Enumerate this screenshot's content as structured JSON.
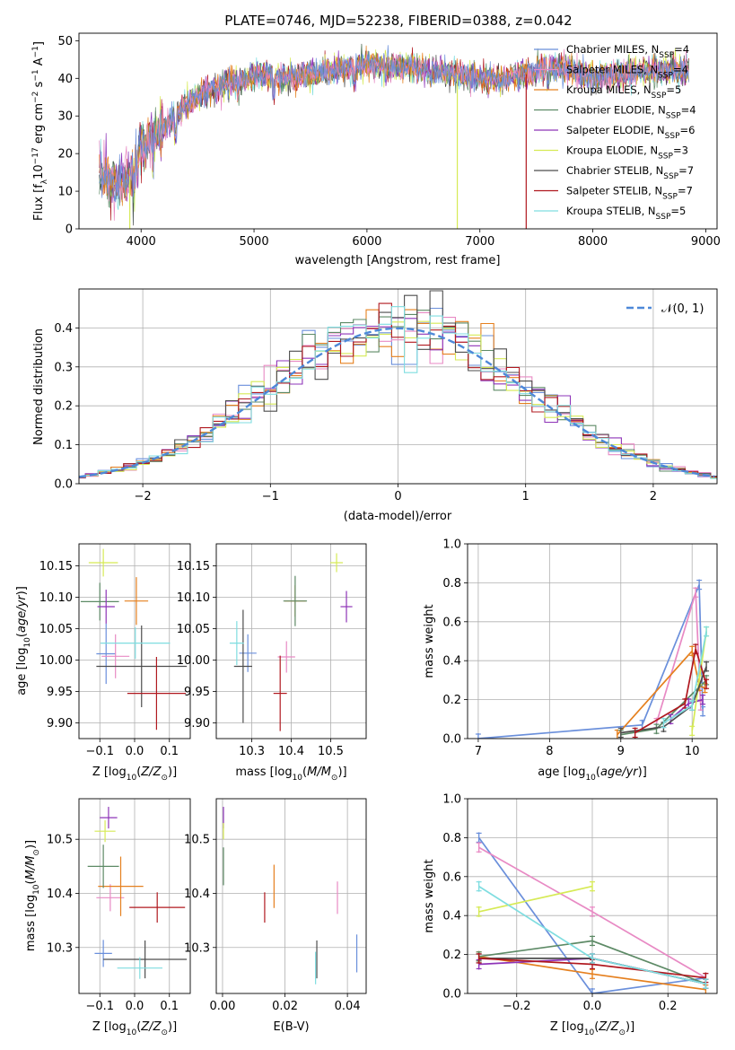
{
  "title": "PLATE=0746, MJD=52238, FIBERID=0388, z=0.042",
  "colors": {
    "Chabrier MILES": "#6a8fdb",
    "Salpeter MILES": "#e88ac4",
    "Kroupa MILES": "#e5801f",
    "Chabrier ELODIE": "#5d8a66",
    "Salpeter ELODIE": "#8e34b8",
    "Kroupa ELODIE": "#d6ea55",
    "Chabrier STELIB": "#4d4d4d",
    "Salpeter STELIB": "#b0181f",
    "Kroupa STELIB": "#7fdde0",
    "normal": "#4d88d8"
  },
  "legend_spectrum": [
    {
      "model": "Chabrier MILES",
      "n": "4"
    },
    {
      "model": "Salpeter MILES",
      "n": "4"
    },
    {
      "model": "Kroupa MILES",
      "n": "5"
    },
    {
      "model": "Chabrier ELODIE",
      "n": "4"
    },
    {
      "model": "Salpeter ELODIE",
      "n": "6"
    },
    {
      "model": "Kroupa ELODIE",
      "n": "3"
    },
    {
      "model": "Chabrier STELIB",
      "n": "7"
    },
    {
      "model": "Salpeter STELIB",
      "n": "7"
    },
    {
      "model": "Kroupa STELIB",
      "n": "5"
    }
  ],
  "legend_hist": "𝒩(0, 1)",
  "chart_data": [
    {
      "id": "spectrum",
      "type": "line",
      "xlabel": "wavelength [Angstrom, rest frame]",
      "ylabel": "Flux [f_λ 10^-17 erg cm^-2 s^-1 A^-1]",
      "xlim": [
        3450,
        9100
      ],
      "ylim": [
        0,
        52
      ],
      "xticks": [
        4000,
        5000,
        6000,
        7000,
        8000,
        9000
      ],
      "yticks": [
        0,
        10,
        20,
        30,
        40,
        50
      ],
      "continuum": {
        "x": [
          3630,
          3700,
          3800,
          3900,
          3980,
          4100,
          4200,
          4300,
          4400,
          4500,
          4700,
          4900,
          5100,
          5300,
          5500,
          5700,
          5900,
          6000,
          6200,
          6400,
          6600,
          6800,
          7000,
          7200,
          7400,
          7600,
          7800,
          8000,
          8200,
          8500,
          8800,
          8850
        ],
        "y": [
          15,
          14,
          12,
          14,
          22,
          24,
          27,
          30,
          33,
          35,
          38,
          40,
          41,
          40,
          41,
          42,
          43,
          44,
          43,
          43,
          42,
          41,
          40,
          40,
          41,
          43,
          42,
          40,
          41,
          42,
          42,
          43
        ]
      },
      "spikes": [
        {
          "model": "Kroupa ELODIE",
          "x": 3900
        },
        {
          "model": "Kroupa ELODIE",
          "x": 6800
        },
        {
          "model": "Salpeter STELIB",
          "x": 7410
        }
      ],
      "grid": false
    },
    {
      "id": "residual_hist",
      "type": "histogram",
      "xlabel": "(data-model)/error",
      "ylabel": "Normed distribution",
      "xlim": [
        -2.5,
        2.5
      ],
      "ylim": [
        0,
        0.5
      ],
      "xticks": [
        -2,
        -1,
        0,
        1,
        2
      ],
      "yticks": [
        0.0,
        0.1,
        0.2,
        0.3,
        0.4
      ],
      "bin_width": 0.1,
      "series_models": [
        "Chabrier MILES",
        "Salpeter MILES",
        "Kroupa MILES",
        "Chabrier ELODIE",
        "Salpeter ELODIE",
        "Kroupa ELODIE",
        "Chabrier STELIB",
        "Salpeter STELIB",
        "Kroupa STELIB"
      ],
      "reference": "standard normal pdf",
      "grid": true,
      "legend": "top-right"
    },
    {
      "id": "age_vs_Z",
      "type": "scatter",
      "xlabel": "Z [log10(Z/Z⊙)]",
      "ylabel": "age  [log10(age/yr)]",
      "xlim": [
        -0.16,
        0.16
      ],
      "ylim": [
        9.875,
        10.185
      ],
      "xticks": [
        -0.1,
        0.0,
        0.1
      ],
      "yticks": [
        9.9,
        9.95,
        10.0,
        10.05,
        10.1,
        10.15
      ],
      "points": [
        {
          "model": "Chabrier MILES",
          "x": -0.082,
          "y": 10.01,
          "ex": 0.028,
          "ey": 0.048
        },
        {
          "model": "Salpeter MILES",
          "x": -0.055,
          "y": 10.006,
          "ex": 0.04,
          "ey": 0.035
        },
        {
          "model": "Kroupa MILES",
          "x": 0.005,
          "y": 10.094,
          "ex": 0.034,
          "ey": 0.038
        },
        {
          "model": "Chabrier ELODIE",
          "x": -0.1,
          "y": 10.093,
          "ex": 0.055,
          "ey": 0.03
        },
        {
          "model": "Salpeter ELODIE",
          "x": -0.082,
          "y": 10.085,
          "ex": 0.025,
          "ey": 0.027
        },
        {
          "model": "Kroupa ELODIE",
          "x": -0.09,
          "y": 10.155,
          "ex": 0.042,
          "ey": 0.022
        },
        {
          "model": "Chabrier STELIB",
          "x": 0.02,
          "y": 9.99,
          "ex": 0.13,
          "ey": 0.065
        },
        {
          "model": "Salpeter STELIB",
          "x": 0.063,
          "y": 9.947,
          "ex": 0.084,
          "ey": 0.058
        },
        {
          "model": "Kroupa STELIB",
          "x": 0.002,
          "y": 10.027,
          "ex": 0.1,
          "ey": 0.025
        }
      ],
      "grid": true
    },
    {
      "id": "age_vs_mass",
      "type": "scatter",
      "xlabel": "mass [log10(M/M⊙)]",
      "ylabel": "",
      "xlim": [
        10.21,
        10.59
      ],
      "ylim": [
        9.875,
        10.185
      ],
      "xticks": [
        10.3,
        10.4,
        10.5
      ],
      "yticks": [
        9.9,
        9.95,
        10.0,
        10.05,
        10.1,
        10.15
      ],
      "points": [
        {
          "model": "Chabrier MILES",
          "x": 10.29,
          "y": 10.011,
          "ex": 0.022,
          "ey": 0.03
        },
        {
          "model": "Salpeter MILES",
          "x": 10.388,
          "y": 10.005,
          "ex": 0.022,
          "ey": 0.025
        },
        {
          "model": "Kroupa MILES",
          "x": 10.41,
          "y": 10.094,
          "ex": 0.027,
          "ey": 0.025
        },
        {
          "model": "Chabrier ELODIE",
          "x": 10.41,
          "y": 10.094,
          "ex": 0.03,
          "ey": 0.04
        },
        {
          "model": "Salpeter ELODIE",
          "x": 10.54,
          "y": 10.085,
          "ex": 0.015,
          "ey": 0.025
        },
        {
          "model": "Kroupa ELODIE",
          "x": 10.515,
          "y": 10.155,
          "ex": 0.016,
          "ey": 0.015
        },
        {
          "model": "Chabrier STELIB",
          "x": 10.278,
          "y": 9.99,
          "ex": 0.023,
          "ey": 0.09
        },
        {
          "model": "Salpeter STELIB",
          "x": 10.372,
          "y": 9.947,
          "ex": 0.017,
          "ey": 0.06
        },
        {
          "model": "Kroupa STELIB",
          "x": 10.262,
          "y": 10.027,
          "ex": 0.018,
          "ey": 0.035
        }
      ],
      "grid": true
    },
    {
      "id": "massweight_vs_age",
      "type": "line",
      "xlabel": "age  [log10(age/yr)]",
      "ylabel": "mass weight",
      "xlim": [
        6.85,
        10.35
      ],
      "ylim": [
        0,
        1.0
      ],
      "xticks": [
        7,
        8,
        9,
        10
      ],
      "yticks": [
        0.0,
        0.2,
        0.4,
        0.6,
        0.8,
        1.0
      ],
      "series": [
        {
          "model": "Chabrier MILES",
          "x": [
            7.0,
            9.3,
            10.1,
            10.15
          ],
          "y": [
            0.0,
            0.07,
            0.79,
            0.14
          ]
        },
        {
          "model": "Salpeter MILES",
          "x": [
            9.5,
            10.05,
            10.12
          ],
          "y": [
            0.08,
            0.75,
            0.17
          ]
        },
        {
          "model": "Kroupa MILES",
          "x": [
            8.95,
            10.0,
            10.1,
            10.18
          ],
          "y": [
            0.02,
            0.45,
            0.27,
            0.26
          ]
        },
        {
          "model": "Chabrier ELODIE",
          "x": [
            9.0,
            9.5,
            10.2
          ],
          "y": [
            0.02,
            0.05,
            0.3
          ]
        },
        {
          "model": "Salpeter ELODIE",
          "x": [
            9.7,
            9.95,
            10.15
          ],
          "y": [
            0.1,
            0.18,
            0.2
          ]
        },
        {
          "model": "Kroupa ELODIE",
          "x": [
            10.0,
            10.1,
            10.2
          ],
          "y": [
            0.04,
            0.3,
            0.55
          ]
        },
        {
          "model": "Chabrier STELIB",
          "x": [
            9.0,
            9.6,
            10.0,
            10.2
          ],
          "y": [
            0.03,
            0.06,
            0.17,
            0.37
          ]
        },
        {
          "model": "Salpeter STELIB",
          "x": [
            9.2,
            9.9,
            10.05,
            10.2
          ],
          "y": [
            0.03,
            0.18,
            0.46,
            0.28
          ]
        },
        {
          "model": "Kroupa STELIB",
          "x": [
            9.6,
            10.0,
            10.2
          ],
          "y": [
            0.08,
            0.17,
            0.55
          ]
        }
      ],
      "grid": true
    },
    {
      "id": "mass_vs_Z",
      "type": "scatter",
      "xlabel": "Z [log10(Z/Z⊙)]",
      "ylabel": "mass [log10(M/M⊙)]",
      "xlim": [
        -0.16,
        0.16
      ],
      "ylim": [
        10.215,
        10.575
      ],
      "xticks": [
        -0.1,
        0.0,
        0.1
      ],
      "yticks": [
        10.3,
        10.4,
        10.5
      ],
      "points": [
        {
          "model": "Chabrier MILES",
          "x": -0.09,
          "y": 10.289,
          "ex": 0.025,
          "ey": 0.025
        },
        {
          "model": "Salpeter MILES",
          "x": -0.07,
          "y": 10.392,
          "ex": 0.04,
          "ey": 0.025
        },
        {
          "model": "Kroupa MILES",
          "x": -0.04,
          "y": 10.413,
          "ex": 0.065,
          "ey": 0.055
        },
        {
          "model": "Chabrier ELODIE",
          "x": -0.09,
          "y": 10.45,
          "ex": 0.045,
          "ey": 0.04
        },
        {
          "model": "Salpeter ELODIE",
          "x": -0.075,
          "y": 10.54,
          "ex": 0.025,
          "ey": 0.02
        },
        {
          "model": "Kroupa ELODIE",
          "x": -0.085,
          "y": 10.515,
          "ex": 0.03,
          "ey": 0.02
        },
        {
          "model": "Chabrier STELIB",
          "x": 0.03,
          "y": 10.278,
          "ex": 0.12,
          "ey": 0.035
        },
        {
          "model": "Salpeter STELIB",
          "x": 0.065,
          "y": 10.374,
          "ex": 0.08,
          "ey": 0.028
        },
        {
          "model": "Kroupa STELIB",
          "x": 0.015,
          "y": 10.262,
          "ex": 0.065,
          "ey": 0.02
        }
      ],
      "grid": true
    },
    {
      "id": "mass_vs_ebv",
      "type": "scatter",
      "xlabel": "E(B-V)",
      "ylabel": "",
      "xlim": [
        -0.002,
        0.046
      ],
      "ylim": [
        10.215,
        10.575
      ],
      "xticks": [
        0.0,
        0.02,
        0.04
      ],
      "yticks": [
        10.3,
        10.4,
        10.5
      ],
      "points": [
        {
          "model": "Chabrier MILES",
          "x": 0.043,
          "y": 10.289,
          "ex": 0,
          "ey": 0.035
        },
        {
          "model": "Salpeter MILES",
          "x": 0.0368,
          "y": 10.392,
          "ex": 0,
          "ey": 0.03
        },
        {
          "model": "Kroupa MILES",
          "x": 0.0165,
          "y": 10.413,
          "ex": 0,
          "ey": 0.04
        },
        {
          "model": "Chabrier ELODIE",
          "x": 0.0003,
          "y": 10.45,
          "ex": 0,
          "ey": 0.035
        },
        {
          "model": "Salpeter ELODIE",
          "x": 0.0003,
          "y": 10.54,
          "ex": 0,
          "ey": 0.02
        },
        {
          "model": "Kroupa ELODIE",
          "x": 0.0003,
          "y": 10.515,
          "ex": 0,
          "ey": 0.015
        },
        {
          "model": "Chabrier STELIB",
          "x": 0.0302,
          "y": 10.278,
          "ex": 0,
          "ey": 0.035
        },
        {
          "model": "Salpeter STELIB",
          "x": 0.0135,
          "y": 10.374,
          "ex": 0,
          "ey": 0.028
        },
        {
          "model": "Kroupa STELIB",
          "x": 0.0298,
          "y": 10.262,
          "ex": 0,
          "ey": 0.03
        }
      ],
      "grid": true
    },
    {
      "id": "massweight_vs_Z",
      "type": "line",
      "xlabel": "Z [log10(Z/Z⊙)]",
      "ylabel": "mass weight",
      "xlim": [
        -0.33,
        0.33
      ],
      "ylim": [
        0,
        1.0
      ],
      "xticks": [
        -0.2,
        0.0,
        0.2
      ],
      "yticks": [
        0.0,
        0.2,
        0.4,
        0.6,
        0.8,
        1.0
      ],
      "series": [
        {
          "model": "Chabrier MILES",
          "x": [
            -0.3,
            0.0,
            0.3
          ],
          "y": [
            0.8,
            0.0,
            0.08
          ]
        },
        {
          "model": "Salpeter MILES",
          "x": [
            -0.3,
            0.0,
            0.3
          ],
          "y": [
            0.75,
            0.42,
            0.08
          ]
        },
        {
          "model": "Kroupa MILES",
          "x": [
            -0.3,
            0.0,
            0.3
          ],
          "y": [
            0.19,
            0.1,
            0.02
          ]
        },
        {
          "model": "Chabrier ELODIE",
          "x": [
            -0.3,
            0.0,
            0.3
          ],
          "y": [
            0.19,
            0.27,
            0.05
          ]
        },
        {
          "model": "Salpeter ELODIE",
          "x": [
            -0.3,
            0.0,
            0.3
          ],
          "y": [
            0.15,
            0.18,
            0.05
          ]
        },
        {
          "model": "Kroupa ELODIE",
          "x": [
            -0.3,
            0.0
          ],
          "y": [
            0.42,
            0.55
          ]
        },
        {
          "model": "Chabrier STELIB",
          "x": [
            -0.3,
            0.0,
            0.3
          ],
          "y": [
            0.18,
            0.18,
            0.05
          ]
        },
        {
          "model": "Salpeter STELIB",
          "x": [
            -0.3,
            0.0,
            0.3
          ],
          "y": [
            0.18,
            0.15,
            0.08
          ]
        },
        {
          "model": "Kroupa STELIB",
          "x": [
            -0.3,
            0.0,
            0.3
          ],
          "y": [
            0.55,
            0.18,
            0.05
          ]
        }
      ],
      "grid": true
    }
  ]
}
